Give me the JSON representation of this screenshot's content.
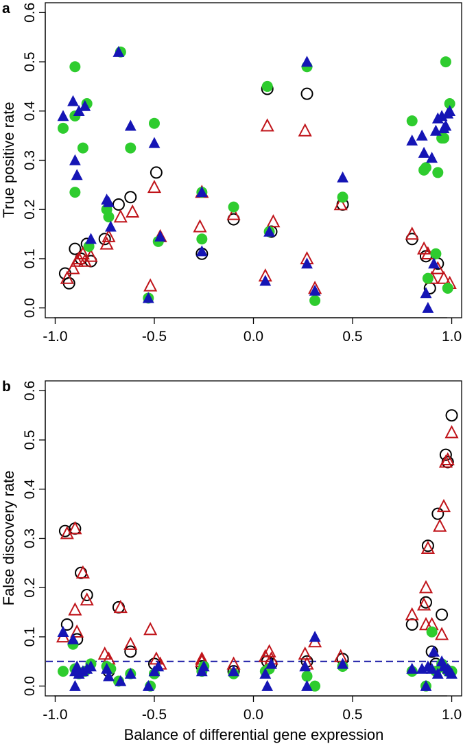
{
  "colors": {
    "circle_open": "#000000",
    "triangle_open": "#c0141a",
    "circle_filled": "#2ecc2e",
    "triangle_filled": "#1515b5",
    "dashed_line": "#1a1aa6"
  },
  "chart_data": [
    {
      "type": "scatter",
      "panel_letter": "a",
      "title": "",
      "xlabel": "",
      "ylabel": "True positive rate",
      "xlim": [
        -1.05,
        1.05
      ],
      "ylim": [
        -0.02,
        0.62
      ],
      "xticks": [
        -1.0,
        -0.5,
        0.0,
        0.5,
        1.0
      ],
      "xtick_labels": [
        "-1.0",
        "-0.5",
        "0.0",
        "0.5",
        "1.0"
      ],
      "yticks": [
        0.0,
        0.1,
        0.2,
        0.3,
        0.4,
        0.5,
        0.6
      ],
      "ytick_labels": [
        "0.0",
        "0.1",
        "0.2",
        "0.3",
        "0.4",
        "0.5",
        "0.6"
      ],
      "series": [
        {
          "name": "open circles",
          "marker": "circle-open",
          "x": [
            -0.95,
            -0.93,
            -0.9,
            -0.87,
            -0.84,
            -0.82,
            -0.75,
            -0.68,
            -0.62,
            -0.49,
            -0.26,
            -0.1,
            0.07,
            0.09,
            0.27,
            0.45,
            0.8,
            0.87,
            0.89,
            0.93
          ],
          "y": [
            0.07,
            0.05,
            0.12,
            0.1,
            0.13,
            0.095,
            0.14,
            0.21,
            0.225,
            0.275,
            0.11,
            0.18,
            0.445,
            0.155,
            0.435,
            0.21,
            0.14,
            0.105,
            0.04,
            0.09
          ]
        },
        {
          "name": "open triangles",
          "marker": "triangle-open",
          "x": [
            -0.94,
            -0.91,
            -0.89,
            -0.88,
            -0.86,
            -0.85,
            -0.82,
            -0.74,
            -0.73,
            -0.67,
            -0.61,
            -0.52,
            -0.5,
            -0.47,
            -0.27,
            -0.26,
            -0.1,
            0.06,
            0.07,
            0.1,
            0.26,
            0.27,
            0.31,
            0.44,
            0.8,
            0.86,
            0.88,
            0.9,
            0.93,
            0.96,
            0.99
          ],
          "y": [
            0.06,
            0.08,
            0.095,
            0.1,
            0.11,
            0.095,
            0.105,
            0.13,
            0.145,
            0.185,
            0.195,
            0.045,
            0.245,
            0.145,
            0.165,
            0.235,
            0.19,
            0.065,
            0.37,
            0.175,
            0.36,
            0.1,
            0.04,
            0.21,
            0.15,
            0.12,
            0.11,
            0.06,
            0.08,
            0.06,
            0.05
          ]
        },
        {
          "name": "filled circles",
          "marker": "circle-filled",
          "x": [
            -0.96,
            -0.9,
            -0.9,
            -0.9,
            -0.86,
            -0.84,
            -0.83,
            -0.74,
            -0.73,
            -0.67,
            -0.62,
            -0.5,
            -0.48,
            -0.53,
            -0.26,
            -0.26,
            -0.1,
            0.07,
            0.08,
            0.27,
            0.31,
            0.45,
            0.8,
            0.86,
            0.87,
            0.92,
            0.93,
            0.95,
            0.96,
            0.97,
            0.98,
            0.99,
            0.88
          ],
          "y": [
            0.365,
            0.49,
            0.39,
            0.235,
            0.325,
            0.415,
            0.125,
            0.2,
            0.185,
            0.52,
            0.325,
            0.375,
            0.135,
            0.02,
            0.235,
            0.14,
            0.205,
            0.45,
            0.155,
            0.49,
            0.015,
            0.225,
            0.38,
            0.28,
            0.285,
            0.11,
            0.275,
            0.345,
            0.345,
            0.5,
            0.04,
            0.415,
            0.06
          ]
        },
        {
          "name": "filled triangles",
          "marker": "triangle-filled",
          "x": [
            -0.96,
            -0.91,
            -0.9,
            -0.89,
            -0.88,
            -0.85,
            -0.82,
            -0.74,
            -0.73,
            -0.72,
            -0.68,
            -0.62,
            -0.5,
            -0.53,
            -0.47,
            -0.26,
            -0.26,
            0.06,
            0.08,
            0.27,
            0.27,
            0.31,
            0.45,
            0.8,
            0.85,
            0.86,
            0.88,
            0.9,
            0.92,
            0.93,
            0.95,
            0.96,
            0.98,
            0.99,
            0.97,
            0.87,
            0.91
          ],
          "y": [
            0.39,
            0.42,
            0.3,
            0.27,
            0.4,
            0.41,
            0.14,
            0.22,
            0.215,
            0.165,
            0.52,
            0.37,
            0.335,
            0.02,
            0.145,
            0.235,
            0.115,
            0.055,
            0.155,
            0.5,
            0.09,
            0.035,
            0.265,
            0.34,
            0.35,
            0.315,
            0.0,
            0.305,
            0.36,
            0.385,
            0.39,
            0.365,
            0.395,
            0.4,
            0.37,
            0.03,
            0.09
          ]
        }
      ]
    },
    {
      "type": "scatter",
      "panel_letter": "b",
      "title": "",
      "xlabel": "Balance of differential gene expression",
      "ylabel": "False discovery rate",
      "xlim": [
        -1.05,
        1.05
      ],
      "ylim": [
        -0.02,
        0.62
      ],
      "xticks": [
        -1.0,
        -0.5,
        0.0,
        0.5,
        1.0
      ],
      "xtick_labels": [
        "-1.0",
        "-0.5",
        "0.0",
        "0.5",
        "1.0"
      ],
      "yticks": [
        0.0,
        0.1,
        0.2,
        0.3,
        0.4,
        0.5,
        0.6
      ],
      "ytick_labels": [
        "0.0",
        "0.1",
        "0.2",
        "0.3",
        "0.4",
        "0.5",
        "0.6"
      ],
      "reference_line": {
        "y": 0.05,
        "style": "dashed"
      },
      "series": [
        {
          "name": "open circles",
          "marker": "circle-open",
          "x": [
            -0.95,
            -0.94,
            -0.9,
            -0.89,
            -0.87,
            -0.84,
            -0.68,
            -0.62,
            -0.73,
            -0.5,
            -0.26,
            -0.1,
            0.07,
            0.09,
            0.27,
            0.45,
            0.8,
            0.87,
            0.88,
            0.9,
            0.93,
            0.95,
            0.97,
            0.98,
            1.0,
            0.92
          ],
          "y": [
            0.315,
            0.125,
            0.32,
            0.095,
            0.23,
            0.185,
            0.16,
            0.07,
            0.03,
            0.045,
            0.04,
            0.03,
            0.05,
            0.045,
            0.05,
            0.055,
            0.125,
            0.17,
            0.285,
            0.07,
            0.35,
            0.145,
            0.47,
            0.455,
            0.55,
            0.045
          ]
        },
        {
          "name": "open triangles",
          "marker": "triangle-open",
          "x": [
            -0.96,
            -0.94,
            -0.9,
            -0.9,
            -0.89,
            -0.86,
            -0.84,
            -0.75,
            -0.73,
            -0.67,
            -0.62,
            -0.52,
            -0.49,
            -0.47,
            -0.26,
            -0.26,
            -0.1,
            0.06,
            0.08,
            0.09,
            0.26,
            0.27,
            0.31,
            0.44,
            0.8,
            0.86,
            0.87,
            0.88,
            0.9,
            0.94,
            0.96,
            0.97,
            0.98,
            1.0,
            0.87,
            0.95
          ],
          "y": [
            0.1,
            0.31,
            0.32,
            0.155,
            0.11,
            0.23,
            0.175,
            0.065,
            0.055,
            0.16,
            0.085,
            0.115,
            0.055,
            0.045,
            0.055,
            0.05,
            0.045,
            0.06,
            0.07,
            0.055,
            0.065,
            0.045,
            0.09,
            0.06,
            0.145,
            0.165,
            0.2,
            0.28,
            0.125,
            0.325,
            0.365,
            0.455,
            0.46,
            0.515,
            0.125,
            0.105
          ]
        },
        {
          "name": "filled circles",
          "marker": "circle-filled",
          "x": [
            -0.96,
            -0.91,
            -0.9,
            -0.88,
            -0.85,
            -0.82,
            -0.74,
            -0.72,
            -0.68,
            -0.62,
            -0.52,
            -0.5,
            -0.26,
            -0.25,
            -0.1,
            0.06,
            0.08,
            0.27,
            0.31,
            0.45,
            0.8,
            0.87,
            0.9,
            0.92,
            0.95,
            0.97,
            0.98,
            1.0
          ],
          "y": [
            0.03,
            0.085,
            0.035,
            0.025,
            0.03,
            0.045,
            0.04,
            0.035,
            0.01,
            0.025,
            0.0,
            0.025,
            0.03,
            0.04,
            0.025,
            0.03,
            0.035,
            0.02,
            0.0,
            0.04,
            0.03,
            0.0,
            0.11,
            0.03,
            0.045,
            0.035,
            0.03,
            0.03
          ]
        },
        {
          "name": "filled triangles",
          "marker": "triangle-filled",
          "x": [
            -0.96,
            -0.91,
            -0.9,
            -0.9,
            -0.89,
            -0.88,
            -0.86,
            -0.84,
            -0.82,
            -0.74,
            -0.73,
            -0.67,
            -0.62,
            -0.53,
            -0.5,
            -0.48,
            -0.26,
            -0.25,
            -0.1,
            0.06,
            0.07,
            0.09,
            0.26,
            0.27,
            0.31,
            0.45,
            0.8,
            0.85,
            0.87,
            0.88,
            0.9,
            0.91,
            0.93,
            0.95,
            0.96,
            0.98,
            0.99,
            1.0
          ],
          "y": [
            0.11,
            0.095,
            0.0,
            0.03,
            0.04,
            0.025,
            0.03,
            0.035,
            0.04,
            0.035,
            0.02,
            0.01,
            0.025,
            0.0,
            0.03,
            0.04,
            0.03,
            0.04,
            0.03,
            0.025,
            0.0,
            0.045,
            0.04,
            0.0,
            0.1,
            0.045,
            0.035,
            0.035,
            0.0,
            0.04,
            0.035,
            0.07,
            0.025,
            0.05,
            0.04,
            0.035,
            0.03,
            0.025
          ]
        }
      ]
    }
  ]
}
